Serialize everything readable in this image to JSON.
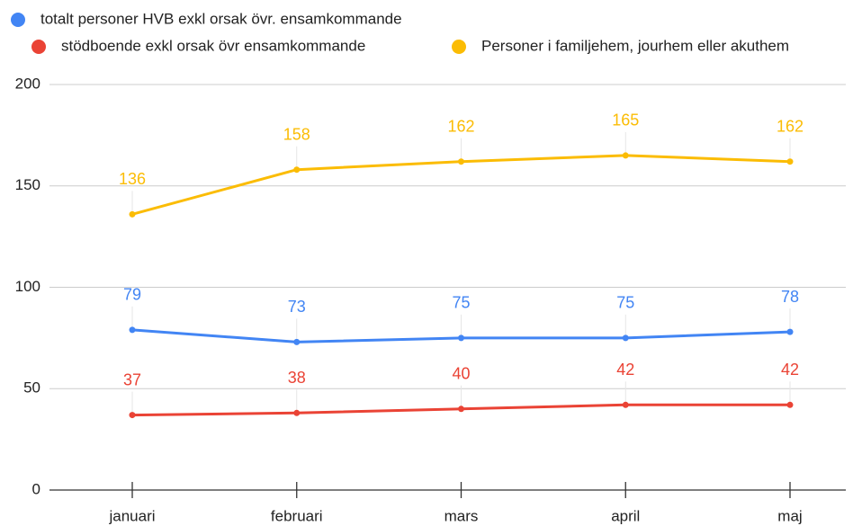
{
  "chart_data": {
    "type": "line",
    "categories": [
      "januari",
      "februari",
      "mars",
      "april",
      "maj"
    ],
    "series": [
      {
        "name": "totalt personer HVB exkl orsak övr. ensamkommande",
        "color": "#4285f4",
        "values": [
          79,
          73,
          75,
          75,
          78
        ]
      },
      {
        "name": "stödboende exkl orsak övr ensamkommande",
        "color": "#ea4335",
        "values": [
          37,
          38,
          40,
          42,
          42
        ]
      },
      {
        "name": "Personer i familjehem, jourhem eller akuthem",
        "color": "#fbbc04",
        "values": [
          136,
          158,
          162,
          165,
          162
        ]
      }
    ],
    "ylim": [
      0,
      200
    ],
    "yticks": [
      0,
      50,
      100,
      150,
      200
    ],
    "grid": true
  }
}
